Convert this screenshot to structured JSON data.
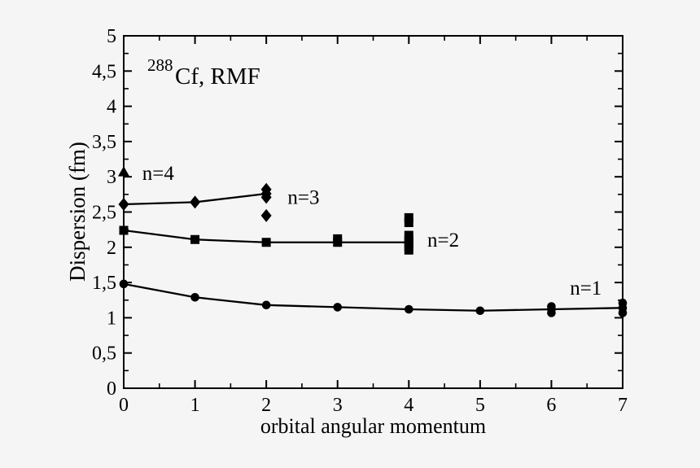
{
  "figure": {
    "background": "#f5f5f6",
    "foreground": "#000000"
  },
  "chart_data": {
    "type": "line",
    "title": "288Cf, RMF",
    "title_parts": {
      "superscript": "288",
      "main": "Cf, RMF"
    },
    "xlabel": "orbital angular momentum",
    "ylabel": "Dispersion (fm)",
    "xlim": [
      0,
      7
    ],
    "ylim": [
      0,
      5
    ],
    "grid": false,
    "legend_position": "inline-annotations",
    "x_major_ticks": [
      0,
      1,
      2,
      3,
      4,
      5,
      6,
      7
    ],
    "x_tick_labels": [
      "0",
      "1",
      "2",
      "3",
      "4",
      "5",
      "6",
      "7"
    ],
    "x_minor_ticks": [
      0.5,
      1.5,
      2.5,
      3.5,
      4.5,
      5.5,
      6.5
    ],
    "y_major_ticks": [
      0,
      0.5,
      1,
      1.5,
      2,
      2.5,
      3,
      3.5,
      4,
      4.5,
      5
    ],
    "y_tick_labels": [
      "0",
      "0,5",
      "1",
      "1,5",
      "2",
      "2,5",
      "3",
      "3,5",
      "4",
      "4,5",
      "5"
    ],
    "y_minor_ticks": [
      0.25,
      0.75,
      1.25,
      1.75,
      2.25,
      2.75,
      3.25,
      3.75,
      4.25,
      4.75
    ],
    "series": [
      {
        "name": "n=1",
        "marker": "circle",
        "x": [
          0,
          1,
          2,
          3,
          4,
          5,
          6,
          7
        ],
        "y": [
          1.48,
          1.29,
          1.18,
          1.15,
          1.12,
          1.1,
          1.12,
          1.14
        ],
        "extra_points": [
          {
            "x": 6,
            "y": 1.16
          },
          {
            "x": 6,
            "y": 1.07
          },
          {
            "x": 7,
            "y": 1.21
          },
          {
            "x": 7,
            "y": 1.07
          }
        ]
      },
      {
        "name": "n=2",
        "marker": "square",
        "x": [
          0,
          1,
          2,
          3,
          4
        ],
        "y": [
          2.24,
          2.11,
          2.07,
          2.07,
          2.07
        ],
        "extra_points": [
          {
            "x": 3,
            "y": 2.12
          },
          {
            "x": 4,
            "y": 2.42
          },
          {
            "x": 4,
            "y": 2.35
          },
          {
            "x": 4,
            "y": 2.17
          },
          {
            "x": 4,
            "y": 2.1
          },
          {
            "x": 4,
            "y": 2.02
          },
          {
            "x": 4,
            "y": 1.96
          }
        ]
      },
      {
        "name": "n=3",
        "marker": "diamond",
        "x": [
          0,
          1,
          2
        ],
        "y": [
          2.61,
          2.64,
          2.76
        ],
        "extra_points": [
          {
            "x": 2,
            "y": 2.82
          },
          {
            "x": 2,
            "y": 2.71
          },
          {
            "x": 2,
            "y": 2.45
          }
        ]
      },
      {
        "name": "n=4",
        "marker": "triangle",
        "x": [
          0
        ],
        "y": [
          3.07
        ],
        "extra_points": []
      }
    ],
    "annotations": [
      {
        "text": "n=4",
        "x": 0.26,
        "y": 3.05
      },
      {
        "text": "n=3",
        "x": 2.3,
        "y": 2.71
      },
      {
        "text": "n=2",
        "x": 4.26,
        "y": 2.1
      },
      {
        "text": "n=1",
        "x": 6.26,
        "y": 1.42
      }
    ],
    "colors": {
      "foreground": "#000000",
      "background": "#f5f5f6"
    }
  }
}
